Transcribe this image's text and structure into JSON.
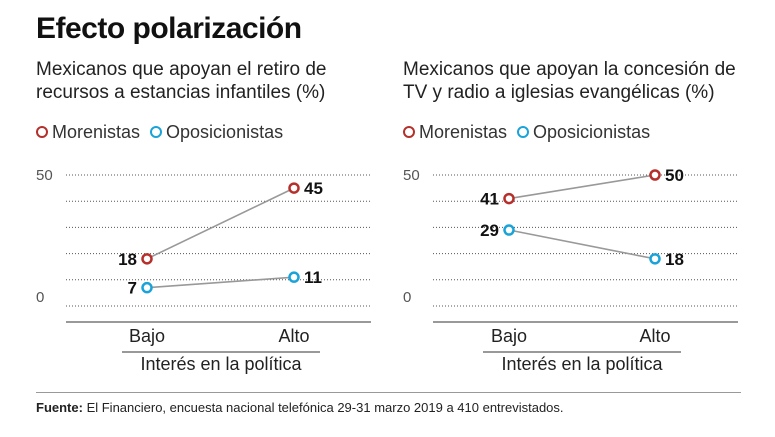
{
  "title": "Efecto polarización",
  "colors": {
    "morenistas": "#b5302b",
    "oposicionistas": "#1aa3d9",
    "line": "#999999",
    "grid": "#555555"
  },
  "legend": {
    "morenistas": "Morenistas",
    "oposicionistas": "Oposicionistas"
  },
  "chart_data": [
    {
      "type": "line",
      "title": "Mexicanos que apoyan el retiro de recursos a estancias infantiles (%)",
      "xlabel": "Interés en la política",
      "ylabel": "",
      "categories": [
        "Bajo",
        "Alto"
      ],
      "ylim": [
        0,
        50
      ],
      "yticks": [
        0,
        50
      ],
      "grid": true,
      "legend_position": "top-left",
      "series": [
        {
          "name": "Morenistas",
          "key": "morenistas",
          "values": [
            18,
            45
          ]
        },
        {
          "name": "Oposicionistas",
          "key": "oposicionistas",
          "values": [
            7,
            11
          ]
        }
      ]
    },
    {
      "type": "line",
      "title": "Mexicanos que apoyan la concesión de TV y radio a iglesias evangélicas (%)",
      "xlabel": "Interés en la política",
      "ylabel": "",
      "categories": [
        "Bajo",
        "Alto"
      ],
      "ylim": [
        0,
        50
      ],
      "yticks": [
        0,
        50
      ],
      "grid": true,
      "legend_position": "top-left",
      "series": [
        {
          "name": "Morenistas",
          "key": "morenistas",
          "values": [
            41,
            50
          ]
        },
        {
          "name": "Oposicionistas",
          "key": "oposicionistas",
          "values": [
            29,
            18
          ]
        }
      ]
    }
  ],
  "footer": {
    "label": "Fuente:",
    "text": " El Financiero, encuesta nacional telefónica 29-31 marzo 2019 a 410 entrevistados."
  }
}
